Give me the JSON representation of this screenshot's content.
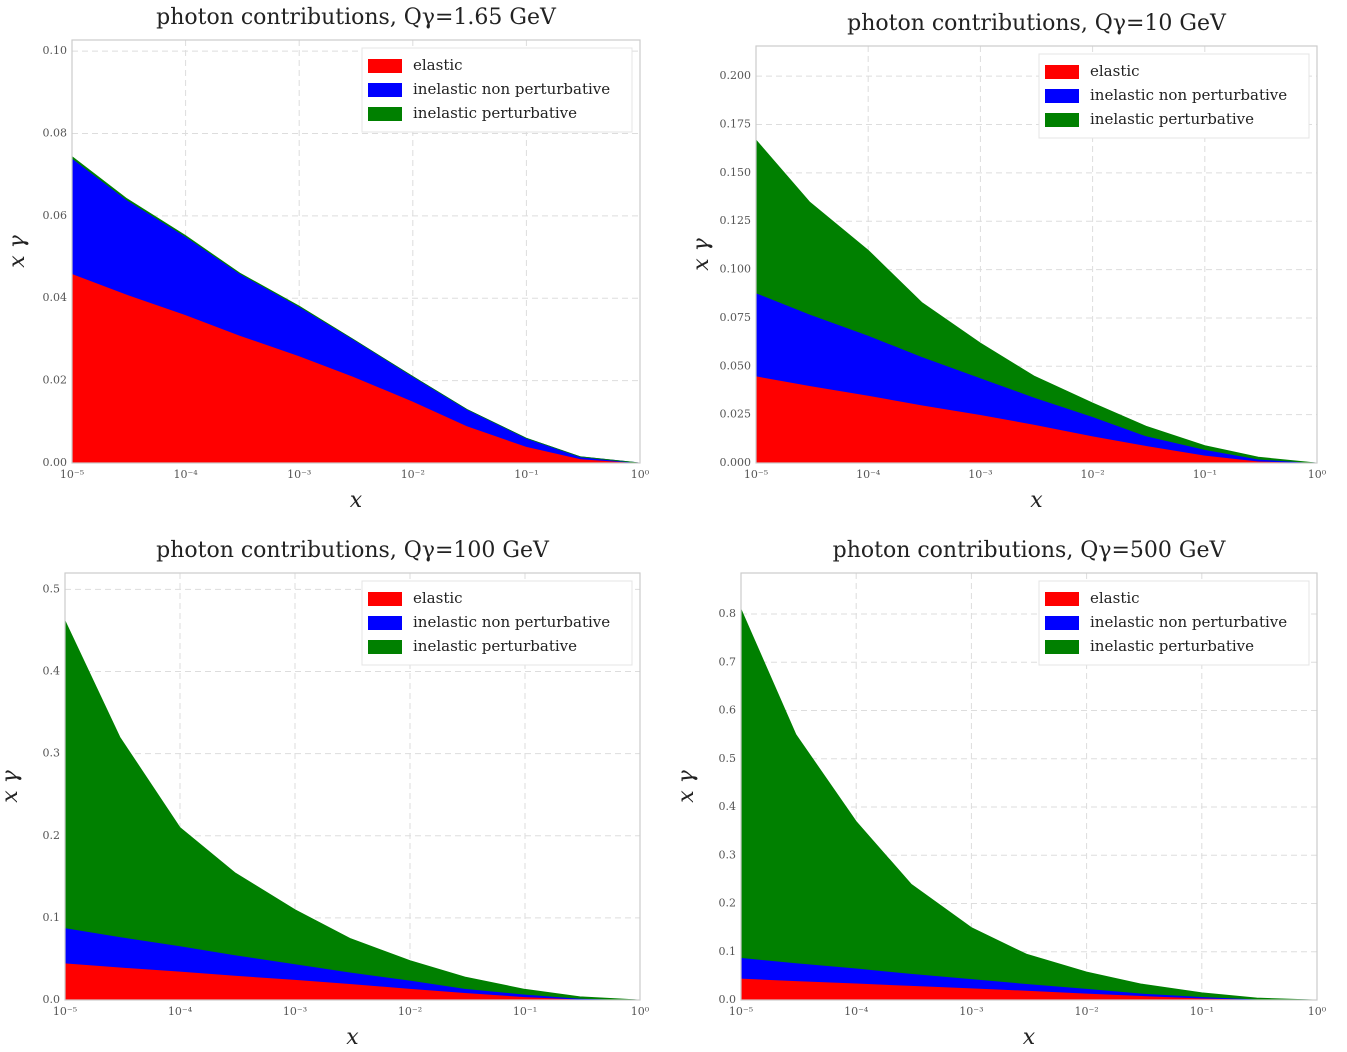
{
  "chart_data": [
    {
      "type": "stacked-area",
      "title": "photon contributions, Qγ=1.65 GeV",
      "x_label": "x",
      "y_label": "x γ",
      "xscale": "log",
      "grid": true,
      "legend": "upper right",
      "x": [
        1e-05,
        3e-05,
        0.0001,
        0.0003,
        0.001,
        0.003,
        0.01,
        0.03,
        0.1,
        0.3,
        1
      ],
      "series": [
        {
          "name": "elastic",
          "color": "#ff0000",
          "values": [
            0.046,
            0.041,
            0.036,
            0.031,
            0.026,
            0.021,
            0.015,
            0.009,
            0.004,
            0.001,
            0
          ]
        },
        {
          "name": "inelastic non perturbative",
          "color": "#0000ff",
          "values": [
            0.028,
            0.023,
            0.019,
            0.015,
            0.012,
            0.009,
            0.006,
            0.004,
            0.002,
            0.0005,
            0
          ]
        },
        {
          "name": "inelastic perturbative",
          "color": "#008000",
          "values": [
            0.0004,
            0.0003,
            0.0002,
            0.0001,
            0.0001,
            0,
            0,
            0,
            0,
            0,
            0
          ]
        }
      ],
      "xlim": [
        1e-05,
        1
      ],
      "xticks": [
        {
          "value": 1e-05,
          "label": "10⁻⁵"
        },
        {
          "value": 0.0001,
          "label": "10⁻⁴"
        },
        {
          "value": 0.001,
          "label": "10⁻³"
        },
        {
          "value": 0.01,
          "label": "10⁻²"
        },
        {
          "value": 0.1,
          "label": "10⁻¹"
        },
        {
          "value": 1,
          "label": "10⁰"
        }
      ],
      "ylim": [
        0,
        0.1027
      ],
      "yticks": [
        {
          "value": 0,
          "label": "0.00"
        },
        0.02,
        0.04,
        0.06,
        0.08,
        {
          "value": 0.1,
          "label": "0.10"
        }
      ]
    },
    {
      "type": "stacked-area",
      "title": "photon contributions, Qγ=10 GeV",
      "x_label": "x",
      "y_label": "x γ",
      "xscale": "log",
      "grid": true,
      "legend": "upper right",
      "x": [
        1e-05,
        3e-05,
        0.0001,
        0.0003,
        0.001,
        0.003,
        0.01,
        0.03,
        0.1,
        0.3,
        1
      ],
      "series": [
        {
          "name": "elastic",
          "color": "#ff0000",
          "values": [
            0.045,
            0.04,
            0.035,
            0.03,
            0.025,
            0.02,
            0.014,
            0.009,
            0.004,
            0.001,
            0
          ]
        },
        {
          "name": "inelastic non perturbative",
          "color": "#0000ff",
          "values": [
            0.043,
            0.037,
            0.031,
            0.025,
            0.019,
            0.014,
            0.01,
            0.005,
            0.003,
            0.001,
            0
          ]
        },
        {
          "name": "inelastic perturbative",
          "color": "#008000",
          "values": [
            0.079,
            0.058,
            0.044,
            0.028,
            0.018,
            0.011,
            0.007,
            0.005,
            0.002,
            0.001,
            0
          ]
        }
      ],
      "xlim": [
        1e-05,
        1
      ],
      "xticks": [
        {
          "value": 1e-05,
          "label": "10⁻⁵"
        },
        {
          "value": 0.0001,
          "label": "10⁻⁴"
        },
        {
          "value": 0.001,
          "label": "10⁻³"
        },
        {
          "value": 0.01,
          "label": "10⁻²"
        },
        {
          "value": 0.1,
          "label": "10⁻¹"
        },
        {
          "value": 1,
          "label": "10⁰"
        }
      ],
      "ylim": [
        0,
        0.2156
      ],
      "yticks": [
        {
          "value": 0,
          "label": "0.000"
        },
        0.025,
        {
          "value": 0.05,
          "label": "0.050"
        },
        0.075,
        {
          "value": 0.1,
          "label": "0.100"
        },
        0.125,
        {
          "value": 0.15,
          "label": "0.150"
        },
        0.175,
        {
          "value": 0.2,
          "label": "0.200"
        }
      ]
    },
    {
      "type": "stacked-area",
      "title": "photon contributions, Qγ=100 GeV",
      "x_label": "x",
      "y_label": "x γ",
      "xscale": "log",
      "grid": true,
      "legend": "upper right",
      "x": [
        1e-05,
        3e-05,
        0.0001,
        0.0003,
        0.001,
        0.003,
        0.01,
        0.03,
        0.1,
        0.3,
        1
      ],
      "series": [
        {
          "name": "elastic",
          "color": "#ff0000",
          "values": [
            0.045,
            0.04,
            0.035,
            0.03,
            0.025,
            0.02,
            0.014,
            0.009,
            0.004,
            0.001,
            0
          ]
        },
        {
          "name": "inelastic non perturbative",
          "color": "#0000ff",
          "values": [
            0.043,
            0.037,
            0.031,
            0.025,
            0.019,
            0.014,
            0.01,
            0.005,
            0.003,
            0.001,
            0
          ]
        },
        {
          "name": "inelastic perturbative",
          "color": "#008000",
          "values": [
            0.374,
            0.243,
            0.144,
            0.1,
            0.066,
            0.041,
            0.024,
            0.014,
            0.006,
            0.002,
            0
          ]
        }
      ],
      "xlim": [
        1e-05,
        1
      ],
      "xticks": [
        {
          "value": 1e-05,
          "label": "10⁻⁵"
        },
        {
          "value": 0.0001,
          "label": "10⁻⁴"
        },
        {
          "value": 0.001,
          "label": "10⁻³"
        },
        {
          "value": 0.01,
          "label": "10⁻²"
        },
        {
          "value": 0.1,
          "label": "10⁻¹"
        },
        {
          "value": 1,
          "label": "10⁰"
        }
      ],
      "ylim": [
        0,
        0.52
      ],
      "yticks": [
        {
          "value": 0,
          "label": "0.0"
        },
        0.1,
        0.2,
        0.3,
        0.4,
        0.5
      ]
    },
    {
      "type": "stacked-area",
      "title": "photon contributions, Qγ=500 GeV",
      "x_label": "x",
      "y_label": "x γ",
      "xscale": "log",
      "grid": true,
      "legend": "upper right",
      "x": [
        1e-05,
        3e-05,
        0.0001,
        0.0003,
        0.001,
        0.003,
        0.01,
        0.03,
        0.1,
        0.3,
        1
      ],
      "series": [
        {
          "name": "elastic",
          "color": "#ff0000",
          "values": [
            0.045,
            0.04,
            0.035,
            0.03,
            0.025,
            0.02,
            0.014,
            0.009,
            0.004,
            0.001,
            0
          ]
        },
        {
          "name": "inelastic non perturbative",
          "color": "#0000ff",
          "values": [
            0.043,
            0.037,
            0.031,
            0.025,
            0.019,
            0.014,
            0.01,
            0.005,
            0.003,
            0.001,
            0
          ]
        },
        {
          "name": "inelastic perturbative",
          "color": "#008000",
          "values": [
            0.722,
            0.473,
            0.304,
            0.185,
            0.106,
            0.061,
            0.034,
            0.019,
            0.008,
            0.002,
            0
          ]
        }
      ],
      "xlim": [
        1e-05,
        1
      ],
      "xticks": [
        {
          "value": 1e-05,
          "label": "10⁻⁵"
        },
        {
          "value": 0.0001,
          "label": "10⁻⁴"
        },
        {
          "value": 0.001,
          "label": "10⁻³"
        },
        {
          "value": 0.01,
          "label": "10⁻²"
        },
        {
          "value": 0.1,
          "label": "10⁻¹"
        },
        {
          "value": 1,
          "label": "10⁰"
        }
      ],
      "ylim": [
        0,
        0.885
      ],
      "yticks": [
        {
          "value": 0,
          "label": "0.0"
        },
        0.1,
        0.2,
        0.3,
        0.4,
        0.5,
        0.6,
        0.7,
        0.8
      ]
    }
  ]
}
